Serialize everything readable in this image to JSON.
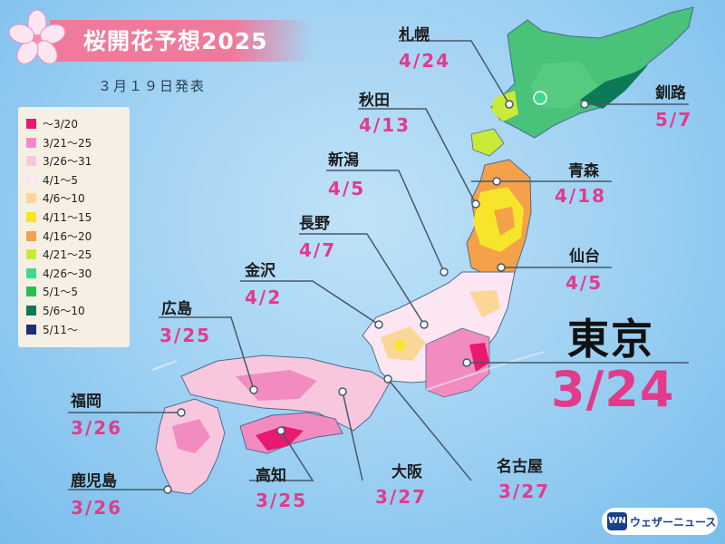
{
  "header": {
    "title": "桜開花予想2025",
    "subtitle": "３月１９日発表"
  },
  "legend": {
    "items": [
      {
        "label": "〜3/20",
        "color": "#e8196e"
      },
      {
        "label": "3/21〜25",
        "color": "#f28cc0"
      },
      {
        "label": "3/26〜31",
        "color": "#f8c7dd"
      },
      {
        "label": "4/1〜5",
        "color": "#fbe6f2"
      },
      {
        "label": "4/6〜10",
        "color": "#fad796"
      },
      {
        "label": "4/11〜15",
        "color": "#f7e52c"
      },
      {
        "label": "4/16〜20",
        "color": "#f4a14a"
      },
      {
        "label": "4/21〜25",
        "color": "#c9ea3a"
      },
      {
        "label": "4/26〜30",
        "color": "#3fd98e"
      },
      {
        "label": "5/1〜5",
        "color": "#2bbf4f"
      },
      {
        "label": "5/6〜10",
        "color": "#0c7a56"
      },
      {
        "label": "5/11〜",
        "color": "#1d2f79"
      }
    ]
  },
  "cities": {
    "sapporo": {
      "name": "札幌",
      "date": "4/24"
    },
    "kushiro": {
      "name": "釧路",
      "date": "5/7"
    },
    "akita": {
      "name": "秋田",
      "date": "4/13"
    },
    "aomori": {
      "name": "青森",
      "date": "4/18"
    },
    "niigata": {
      "name": "新潟",
      "date": "4/5"
    },
    "nagano": {
      "name": "長野",
      "date": "4/7"
    },
    "sendai": {
      "name": "仙台",
      "date": "4/5"
    },
    "kanazawa": {
      "name": "金沢",
      "date": "4/2"
    },
    "hiroshima": {
      "name": "広島",
      "date": "3/25"
    },
    "fukuoka": {
      "name": "福岡",
      "date": "3/26"
    },
    "kagoshima": {
      "name": "鹿児島",
      "date": "3/26"
    },
    "kochi": {
      "name": "高知",
      "date": "3/25"
    },
    "osaka": {
      "name": "大阪",
      "date": "3/27"
    },
    "nagoya": {
      "name": "名古屋",
      "date": "3/27"
    },
    "tokyo": {
      "name": "東京",
      "date": "3/24"
    }
  },
  "logo": {
    "mark": "WN",
    "text": "ウェザーニュース"
  }
}
